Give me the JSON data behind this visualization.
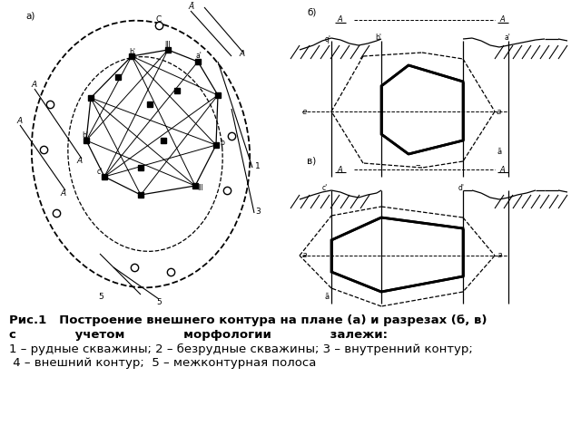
{
  "title_line1": "Рис.1   Построение внешнего контура на плане (а) и разрезах (б, в)",
  "title_line2": "с              учетом              морфологии              залежи:",
  "title_line3": "1 – рудные скважины; 2 – безрудные скважины; 3 – внутренний контур;",
  "title_line4": " 4 – внешний контур;  5 – межконтурная полоса",
  "bg_color": "#ffffff",
  "line_color": "#000000",
  "title_fontsize": 9.5,
  "label_fontsize": 7
}
